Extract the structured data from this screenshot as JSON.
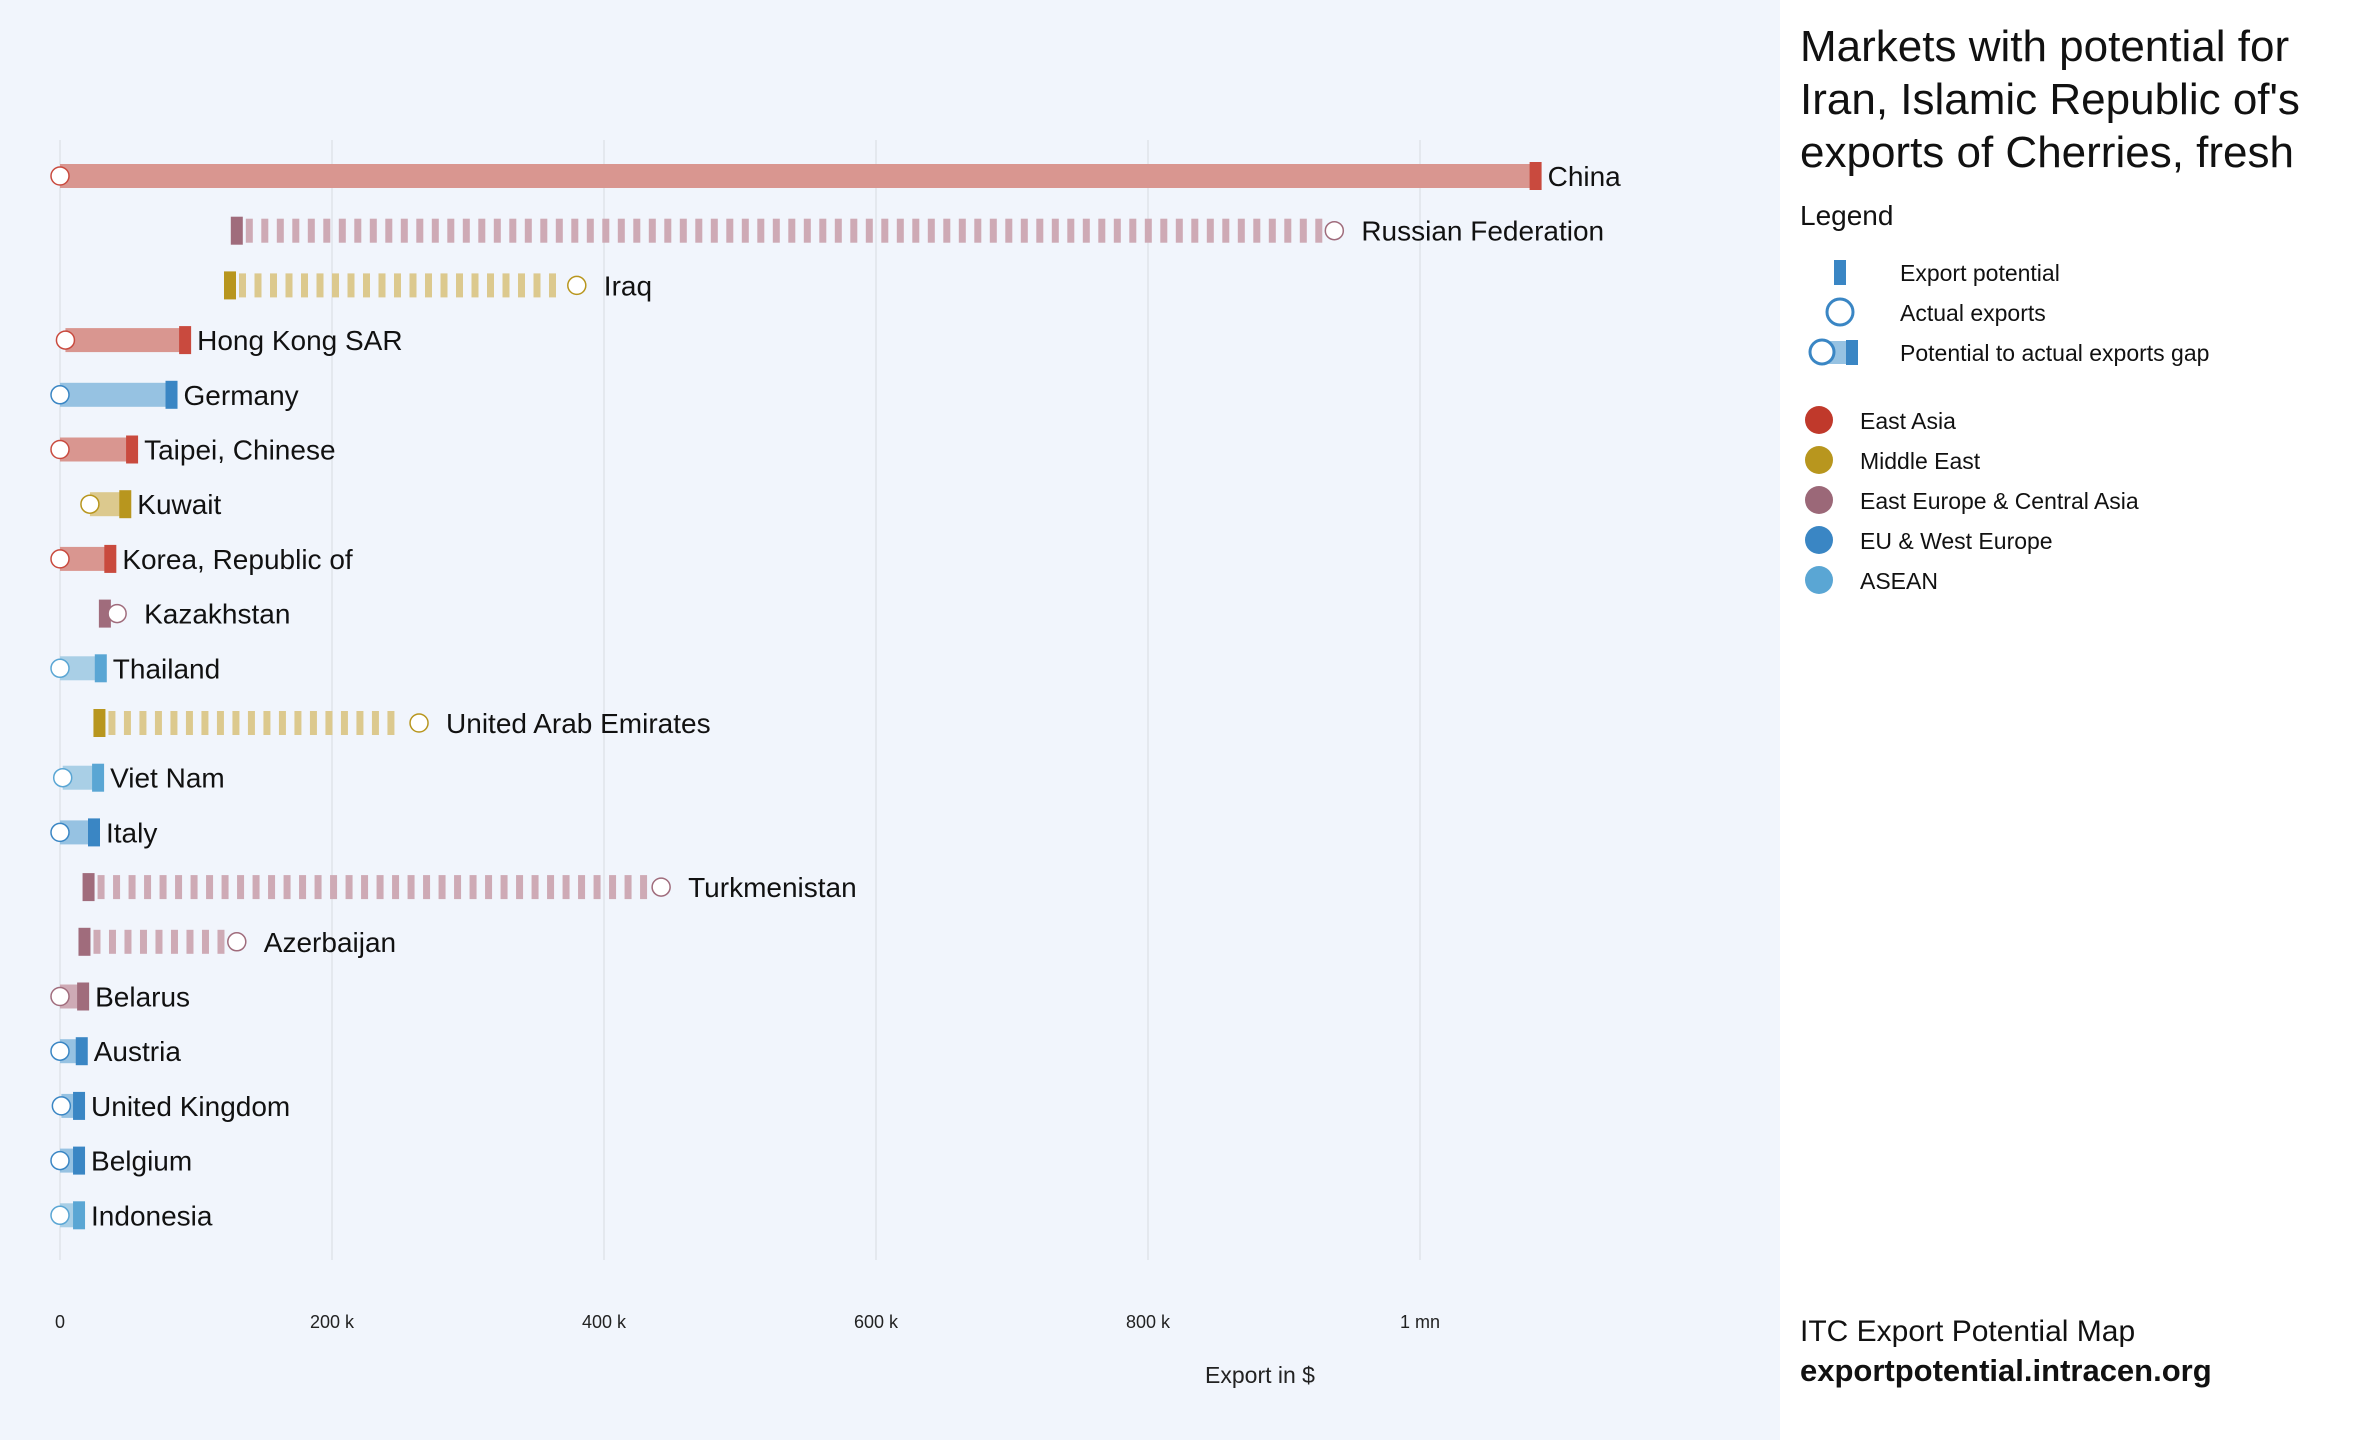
{
  "title": "Markets with potential for Iran, Islamic Republic of's exports of Cherries, fresh",
  "legend": {
    "heading": "Legend",
    "keys": [
      {
        "label": "Export potential",
        "icon": "potential-bar-icon"
      },
      {
        "label": "Actual exports",
        "icon": "actual-circle-icon"
      },
      {
        "label": "Potential to actual exports gap",
        "icon": "gap-icon"
      }
    ],
    "regions": [
      {
        "name": "East Asia",
        "color": "#c0392b"
      },
      {
        "name": "Middle East",
        "color": "#b8961e"
      },
      {
        "name": "East Europe & Central Asia",
        "color": "#9b6878"
      },
      {
        "name": "EU & West Europe",
        "color": "#3a86c4"
      },
      {
        "name": "ASEAN",
        "color": "#5aa6d4"
      }
    ]
  },
  "source": {
    "name": "ITC Export Potential Map",
    "url": "exportpotential.intracen.org"
  },
  "chart_data": {
    "type": "dumbbell",
    "xlabel": "Export in $",
    "xlim": [
      0,
      1250000
    ],
    "xticks": [
      {
        "value": 0,
        "label": "0"
      },
      {
        "value": 200000,
        "label": "200 k"
      },
      {
        "value": 400000,
        "label": "400 k"
      },
      {
        "value": 600000,
        "label": "600 k"
      },
      {
        "value": 800000,
        "label": "800 k"
      },
      {
        "value": 1000000,
        "label": "1 mn"
      }
    ],
    "grid": true,
    "colors": {
      "East Asia": {
        "bar": "#d99690",
        "mark": "#c94a3e"
      },
      "Middle East": {
        "bar": "#dcc98e",
        "mark": "#b8961e"
      },
      "East Europe & Central Asia": {
        "bar": "#ceaab5",
        "mark": "#a06c7c"
      },
      "EU & West Europe": {
        "bar": "#96c2e2",
        "mark": "#3a86c4"
      },
      "ASEAN": {
        "bar": "#a9cfe6",
        "mark": "#5aa6d4"
      }
    },
    "markets": [
      {
        "name": "China",
        "region": "East Asia",
        "potential": 1085000,
        "actual": 0
      },
      {
        "name": "Russian Federation",
        "region": "East Europe & Central Asia",
        "potential": 130000,
        "actual": 937000
      },
      {
        "name": "Iraq",
        "region": "Middle East",
        "potential": 125000,
        "actual": 380000
      },
      {
        "name": "Hong Kong SAR",
        "region": "East Asia",
        "potential": 92000,
        "actual": 4000
      },
      {
        "name": "Germany",
        "region": "EU & West Europe",
        "potential": 82000,
        "actual": 0
      },
      {
        "name": "Taipei, Chinese",
        "region": "East Asia",
        "potential": 53000,
        "actual": 0
      },
      {
        "name": "Kuwait",
        "region": "Middle East",
        "potential": 48000,
        "actual": 22000
      },
      {
        "name": "Korea, Republic of",
        "region": "East Asia",
        "potential": 37000,
        "actual": 0
      },
      {
        "name": "Kazakhstan",
        "region": "East Europe & Central Asia",
        "potential": 33000,
        "actual": 42000
      },
      {
        "name": "Thailand",
        "region": "ASEAN",
        "potential": 30000,
        "actual": 0
      },
      {
        "name": "United Arab Emirates",
        "region": "Middle East",
        "potential": 29000,
        "actual": 264000
      },
      {
        "name": "Viet Nam",
        "region": "ASEAN",
        "potential": 28000,
        "actual": 2000
      },
      {
        "name": "Italy",
        "region": "EU & West Europe",
        "potential": 25000,
        "actual": 0
      },
      {
        "name": "Turkmenistan",
        "region": "East Europe & Central Asia",
        "potential": 21000,
        "actual": 442000
      },
      {
        "name": "Azerbaijan",
        "region": "East Europe & Central Asia",
        "potential": 18000,
        "actual": 130000
      },
      {
        "name": "Belarus",
        "region": "East Europe & Central Asia",
        "potential": 17000,
        "actual": 0
      },
      {
        "name": "Austria",
        "region": "EU & West Europe",
        "potential": 16000,
        "actual": 0
      },
      {
        "name": "United Kingdom",
        "region": "EU & West Europe",
        "potential": 14000,
        "actual": 1000
      },
      {
        "name": "Belgium",
        "region": "EU & West Europe",
        "potential": 14000,
        "actual": 0
      },
      {
        "name": "Indonesia",
        "region": "ASEAN",
        "potential": 14000,
        "actual": 0
      }
    ]
  }
}
